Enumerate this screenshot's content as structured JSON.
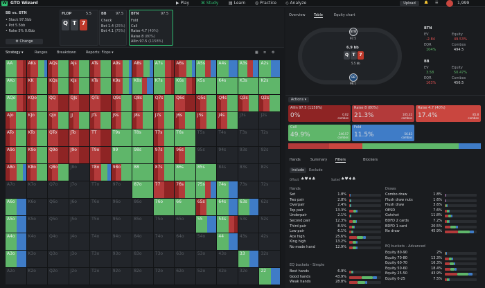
{
  "app": {
    "title": "GTO Wizard",
    "nav": [
      "Play",
      "Study",
      "Learn",
      "Practice",
      "Analyze"
    ],
    "active": "Study",
    "upload": "Upload",
    "balance": "1,999"
  },
  "header": {
    "spot": "BB vs. BTN",
    "stack": "Stack 97.5bb",
    "pot": "Pot 5.5bb",
    "rake": "Rake 5% 0.6bb",
    "change": "Change",
    "flop_label": "FLOP",
    "flop_pot": "5.5",
    "board": [
      {
        "rank": "Q",
        "color": "#3c4046"
      },
      {
        "rank": "T",
        "color": "#3c4046"
      },
      {
        "rank": "7",
        "color": "#c0392b"
      }
    ],
    "bb": {
      "name": "BB",
      "stack": "97.5",
      "actions": [
        {
          "label": "Check",
          "pct": ""
        },
        {
          "label": "Bet 1.4",
          "pct": "(25%)"
        },
        {
          "label": "Bet 4.1",
          "pct": "(75%)"
        }
      ]
    },
    "btn": {
      "name": "BTN",
      "stack": "97.5",
      "actions": [
        {
          "label": "Fold",
          "pct": ""
        },
        {
          "label": "Call",
          "pct": ""
        },
        {
          "label": "Raise 4.7",
          "pct": "(40%)"
        },
        {
          "label": "Raise 8",
          "pct": "(80%)"
        },
        {
          "label": "Allin 97.5",
          "pct": "(1158%)"
        }
      ]
    }
  },
  "toolbar": {
    "strategy": "Strategy",
    "ranges": "Ranges",
    "breakdown": "Breakdown",
    "reports": "Reports: Flops"
  },
  "colors": {
    "green": "#5fb66a",
    "red": "#b33a3a",
    "darkred": "#8e2424",
    "blue": "#3f7cc7",
    "darkcell": "#22252a"
  },
  "matrix": {
    "labels": [
      [
        "AA",
        "AKs",
        "AQs",
        "AJs",
        "ATs",
        "A9s",
        "A8s",
        "A7s",
        "A6s",
        "A5s",
        "A4s",
        "A3s",
        "A2s"
      ],
      [
        "AKo",
        "KK",
        "KQs",
        "KJs",
        "KTs",
        "K9s",
        "K8s",
        "K7s",
        "K6s",
        "K5s",
        "K4s",
        "K3s",
        "K2s"
      ],
      [
        "AQo",
        "KQo",
        "QQ",
        "QJs",
        "QTs",
        "Q9s",
        "Q8s",
        "Q7s",
        "Q6s",
        "Q5s",
        "Q4s",
        "Q3s",
        "Q2s"
      ],
      [
        "AJo",
        "KJo",
        "QJo",
        "JJ",
        "JTs",
        "J9s",
        "J8s",
        "J7s",
        "J6s",
        "J5s",
        "J4s",
        "J3s",
        "J2s"
      ],
      [
        "ATo",
        "KTo",
        "QTo",
        "JTo",
        "TT",
        "T9s",
        "T8s",
        "T7s",
        "T6s",
        "T5s",
        "T4s",
        "T3s",
        "T2s"
      ],
      [
        "A9o",
        "K9o",
        "Q9o",
        "J9o",
        "T9o",
        "99",
        "98s",
        "97s",
        "96s",
        "95s",
        "94s",
        "93s",
        "92s"
      ],
      [
        "A8o",
        "K8o",
        "Q8o",
        "J8o",
        "T8o",
        "98o",
        "88",
        "87s",
        "86s",
        "85s",
        "84s",
        "83s",
        "82s"
      ],
      [
        "A7o",
        "K7o",
        "Q7o",
        "J7o",
        "T7o",
        "97o",
        "87o",
        "77",
        "76s",
        "75s",
        "74s",
        "73s",
        "72s"
      ],
      [
        "A6o",
        "K6o",
        "Q6o",
        "J6o",
        "T6o",
        "96o",
        "86o",
        "76o",
        "66",
        "65s",
        "64s",
        "63s",
        "62s"
      ],
      [
        "A5o",
        "K5o",
        "Q5o",
        "J5o",
        "T5o",
        "95o",
        "85o",
        "75o",
        "65o",
        "55",
        "54s",
        "53s",
        "52s"
      ],
      [
        "A4o",
        "K4o",
        "Q4o",
        "J4o",
        "T4o",
        "94o",
        "84o",
        "74o",
        "64o",
        "54o",
        "44",
        "43s",
        "42s"
      ],
      [
        "A3o",
        "K3o",
        "Q3o",
        "J3o",
        "T3o",
        "93o",
        "83o",
        "73o",
        "63o",
        "53o",
        "43o",
        "33",
        "32s"
      ],
      [
        "A2o",
        "K2o",
        "Q2o",
        "J2o",
        "T2o",
        "92o",
        "82o",
        "72o",
        "62o",
        "52o",
        "42o",
        "32o",
        "22"
      ]
    ],
    "mix": [
      [
        "gr",
        "rgb",
        "rg",
        "rg",
        "rg",
        "rgb",
        "rgb",
        "gr",
        "rgb",
        "grb",
        "gb",
        "grb",
        "gb"
      ],
      [
        "gr",
        "rg",
        "rg",
        "rg",
        "rg",
        "rgb",
        "grb",
        "gr",
        "gr",
        "g",
        "g",
        "g",
        "g"
      ],
      [
        "gr",
        "rg",
        "r",
        "r",
        "r",
        "rg",
        "rg",
        "rg",
        "r",
        "rg",
        "rg",
        "rg",
        "rg"
      ],
      [
        "rg",
        "rg",
        "rg",
        "rg",
        "rg",
        "rg",
        "rg",
        "rg",
        "rg",
        "rg",
        "rg",
        "x",
        "x"
      ],
      [
        "rg",
        "rg",
        "r",
        "r",
        "r",
        "g",
        "g",
        "rg",
        "g",
        "x",
        "x",
        "x",
        "x"
      ],
      [
        "rg",
        "rg",
        "r",
        "r",
        "r",
        "g",
        "g",
        "rg",
        "rg",
        "x",
        "x",
        "x",
        "x"
      ],
      [
        "rgb",
        "rg",
        "rg",
        "x",
        "rgb",
        "rg",
        "g",
        "rg",
        "g",
        "g",
        "x",
        "x",
        "x"
      ],
      [
        "x",
        "x",
        "x",
        "x",
        "x",
        "x",
        "g",
        "r",
        "rg",
        "grb",
        "gb",
        "x",
        "x"
      ],
      [
        "gb",
        "x",
        "x",
        "x",
        "x",
        "x",
        "x",
        "g",
        "g",
        "rg",
        "gb",
        "gb",
        "x"
      ],
      [
        "gb",
        "x",
        "x",
        "x",
        "x",
        "x",
        "x",
        "x",
        "x",
        "gb",
        "gr",
        "x",
        "x"
      ],
      [
        "gb",
        "x",
        "x",
        "x",
        "x",
        "x",
        "x",
        "x",
        "x",
        "x",
        "gb",
        "x",
        "x"
      ],
      [
        "gb",
        "x",
        "x",
        "x",
        "x",
        "x",
        "x",
        "x",
        "x",
        "x",
        "x",
        "gb",
        "x"
      ],
      [
        "x",
        "x",
        "x",
        "x",
        "x",
        "x",
        "x",
        "x",
        "x",
        "x",
        "x",
        "x",
        "gb"
      ]
    ]
  },
  "right": {
    "tabs": [
      "Overview",
      "Table",
      "Equity chart"
    ],
    "active_tab": "Table",
    "seats": {
      "btn": "BTN",
      "btn_stack": "97.5",
      "bb": "BB",
      "bb_stack": "98.1",
      "pot": "6.9 bb",
      "chips": "5.5 bb"
    },
    "btn_stats": {
      "name": "BTN",
      "ev_label": "EV",
      "ev": "-2.84",
      "eqr_label": "EQR",
      "eqr": "104%",
      "equity_label": "Equity",
      "equity": "49.53%",
      "combos_label": "Combos",
      "combos": "494.5"
    },
    "bb_stats": {
      "name": "BB",
      "ev_label": "EV",
      "ev": "3.58",
      "eqr_label": "EQR",
      "eqr": "163%",
      "equity_label": "Equity",
      "equity": "50.47%",
      "combos_label": "Combos",
      "combos": "456.5"
    },
    "actions_label": "Actions",
    "actions": [
      {
        "name": "Allin 97.5 (1158%)",
        "pct": "0%",
        "r1": "0.02",
        "r2": "combos",
        "color": "#8e2424"
      },
      {
        "name": "Raise 8 (80%)",
        "pct": "21.3%",
        "r1": "105.32",
        "r2": "combos",
        "color": "#b33a3a"
      },
      {
        "name": "Raise 4.7 (40%)",
        "pct": "17.4%",
        "r1": "85.8",
        "r2": "combos",
        "color": "#c9463f"
      },
      {
        "name": "Call",
        "pct": "49.9%",
        "r1": "246.57",
        "r2": "combos",
        "color": "#5fb66a"
      },
      {
        "name": "Fold",
        "pct": "11.5%",
        "r1": "56.83",
        "r2": "combos",
        "color": "#3f7cc7"
      }
    ],
    "subtabs": [
      "Hands",
      "Summary",
      "Filters",
      "Blockers"
    ],
    "active_subtab": "Filters",
    "include": "Include",
    "exclude": "Exclude",
    "offsuit": "Offsuit",
    "suited": "Suited",
    "hands_title": "Hands",
    "draws_title": "Draws",
    "eqb_title": "EQ buckets - Simple",
    "eqa_title": "EQ buckets - Advanced",
    "hands": [
      [
        "Set",
        "1.8%"
      ],
      [
        "Two pair",
        "2.8%"
      ],
      [
        "Overpair",
        "2.4%"
      ],
      [
        "Top pair",
        "13.3%"
      ],
      [
        "Underpair",
        "2.1%"
      ],
      [
        "Second pair",
        "12.3%"
      ],
      [
        "Third pair",
        "8.5%"
      ],
      [
        "Low pair",
        "6.1%"
      ],
      [
        "Ace high",
        "25.6%"
      ],
      [
        "King high",
        "13.2%"
      ],
      [
        "No made hand",
        "12.9%"
      ]
    ],
    "draws": [
      [
        "Combo draw",
        "1.8%"
      ],
      [
        "Flush draw nuts",
        "1.6%"
      ],
      [
        "Flush draw",
        "3.6%"
      ],
      [
        "OESD",
        "7.6%"
      ],
      [
        "Gutshot",
        "11.8%"
      ],
      [
        "BDFD 2 cards",
        "7.2%"
      ],
      [
        "BDFD 1 card",
        "20.5%"
      ],
      [
        "No draw",
        "45.9%"
      ]
    ],
    "eq_simple": [
      [
        "Best hands",
        "6.9%"
      ],
      [
        "Good hands",
        "43.9%"
      ],
      [
        "Weak hands",
        "28.8%"
      ]
    ],
    "eq_adv": [
      [
        "Equity 80-90",
        "2%"
      ],
      [
        "Equity 70-80",
        "13.3%"
      ],
      [
        "Equity 60-70",
        "16.3%"
      ],
      [
        "Equity 50-60",
        "18.4%"
      ],
      [
        "Equity 25-50",
        "43.9%"
      ],
      [
        "Equity 0-25",
        "7.5%"
      ]
    ]
  }
}
